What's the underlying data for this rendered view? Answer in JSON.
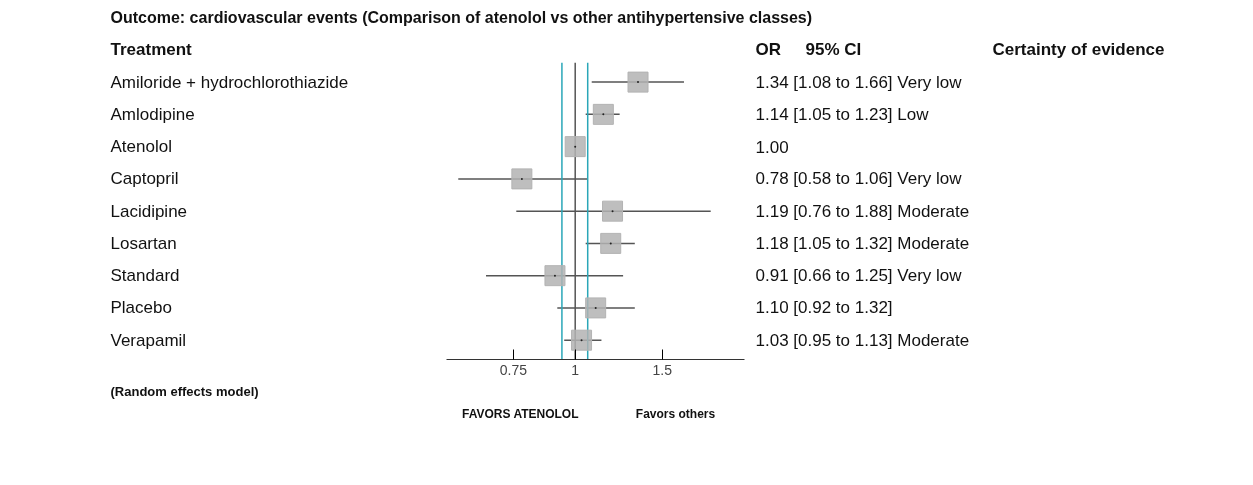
{
  "chart_data": {
    "type": "scatter",
    "title": "Outcome: cardiovascular events (Comparison of atenolol vs other antihypertensive classes)",
    "ylabel": "Treatment",
    "categories": [
      "Amiloride + hydrochlorothiazide",
      "Amlodipine",
      "Atenolol",
      "Captopril",
      "Lacidipine",
      "Losartan",
      "Standard",
      "Placebo",
      "Verapamil"
    ],
    "values": [
      1.34,
      1.14,
      1.0,
      0.78,
      1.19,
      1.18,
      0.91,
      1.1,
      1.03
    ],
    "errors": [
      [
        1.08,
        1.66
      ],
      [
        1.05,
        1.23
      ],
      null,
      [
        0.58,
        1.06
      ],
      [
        0.76,
        1.88
      ],
      [
        1.05,
        1.32
      ],
      [
        0.66,
        1.25
      ],
      [
        0.92,
        1.32
      ],
      [
        0.95,
        1.13
      ]
    ],
    "color": "#b3b3b3",
    "marker": "square",
    "orientation": "horizontal",
    "log": "x",
    "grid": false,
    "xlim": [
      0.55,
      2.2
    ],
    "xticks": [
      0.75,
      1,
      1.5
    ],
    "ref_lines": [
      {
        "axis": "x",
        "value": 1,
        "color": "#555555"
      },
      {
        "axis": "x",
        "value": 0.94,
        "color": "#2aa7b8"
      },
      {
        "axis": "x",
        "value": 1.06,
        "color": "#2aa7b8"
      }
    ],
    "annotations": [
      "OR",
      "95% CI",
      "Certainty of evidence",
      "(Random effects model)",
      "FAVORS ATENOLOL",
      "Favors others",
      "1.34  [1.08 to 1.66]  Very low",
      "1.14  [1.05 to 1.23]  Low",
      "1.00",
      "0.78  [0.58 to 1.06]  Very low",
      "1.19  [0.76 to 1.88]  Moderate",
      "1.18  [1.05 to 1.32]  Moderate",
      "0.91  [0.66 to 1.25]  Very low",
      "1.10  [0.92 to 1.32]",
      "1.03  [0.95 to 1.13]  Moderate"
    ]
  }
}
